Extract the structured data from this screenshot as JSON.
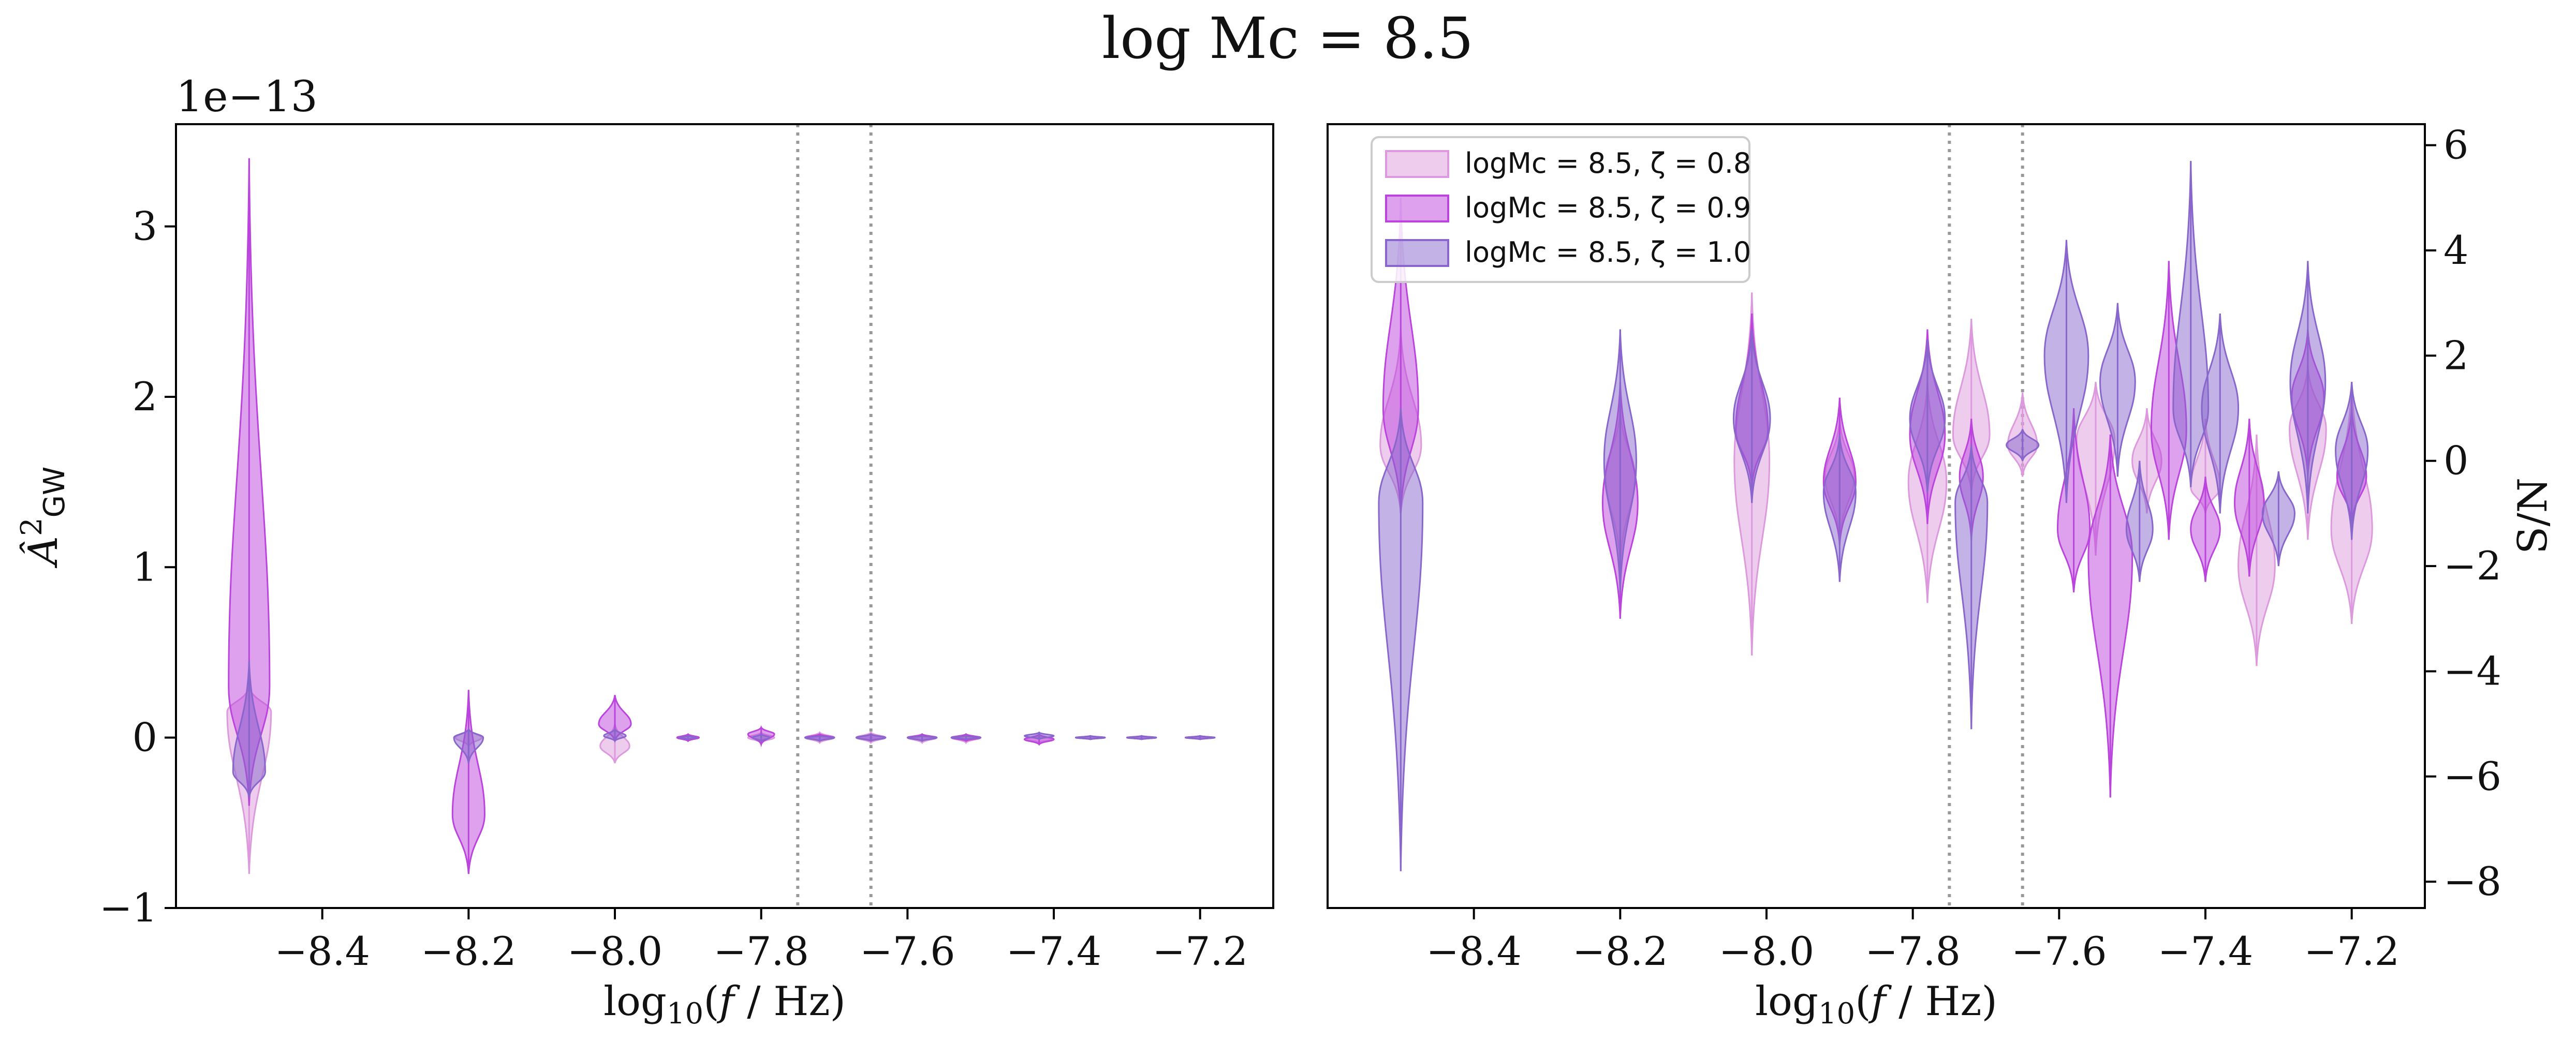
{
  "figure_title": "log Mc = 8.5",
  "chart_data": [
    {
      "type": "violin",
      "panel": "left",
      "xlabel": "log10(f / Hz)",
      "ylabel": "Â²GW",
      "y_offset_label": "1e−13",
      "xlim": [
        -8.6,
        -7.1
      ],
      "ylim": [
        -1.0,
        3.6
      ],
      "xticks": [
        "−8.4",
        "−8.2",
        "−8.0",
        "−7.8",
        "−7.6",
        "−7.4",
        "−7.2"
      ],
      "xtick_values": [
        -8.4,
        -8.2,
        -8.0,
        -7.8,
        -7.6,
        -7.4,
        -7.2
      ],
      "yticks": [
        "−1",
        "0",
        "1",
        "2",
        "3"
      ],
      "ytick_values": [
        -1,
        0,
        1,
        2,
        3
      ],
      "vlines": [
        -7.75,
        -7.65
      ],
      "series": [
        {
          "name": "logMc = 8.5, ζ = 0.8",
          "color": "#dd99dd",
          "points": [
            {
              "x": -8.5,
              "min": -0.8,
              "max": 0.3,
              "center": 0.15,
              "spread": 0.03
            },
            {
              "x": -8.2,
              "min": -0.05,
              "max": 0.05,
              "center": 0.0,
              "spread": 0.018
            },
            {
              "x": -8.0,
              "min": -0.15,
              "max": 0.08,
              "center": -0.05,
              "spread": 0.02
            },
            {
              "x": -7.9,
              "min": -0.02,
              "max": 0.02,
              "center": 0.0,
              "spread": 0.015
            },
            {
              "x": -7.8,
              "min": -0.03,
              "max": 0.03,
              "center": 0.0,
              "spread": 0.018
            },
            {
              "x": -7.72,
              "min": -0.03,
              "max": 0.03,
              "center": 0.0,
              "spread": 0.02
            },
            {
              "x": -7.65,
              "min": -0.03,
              "max": 0.03,
              "center": 0.0,
              "spread": 0.02
            },
            {
              "x": -7.58,
              "min": -0.03,
              "max": 0.02,
              "center": 0.0,
              "spread": 0.02
            },
            {
              "x": -7.52,
              "min": -0.03,
              "max": 0.02,
              "center": 0.0,
              "spread": 0.02
            },
            {
              "x": -7.42,
              "min": -0.03,
              "max": 0.01,
              "center": -0.01,
              "spread": 0.02
            },
            {
              "x": -7.35,
              "min": -0.01,
              "max": 0.01,
              "center": 0.0,
              "spread": 0.02
            },
            {
              "x": -7.28,
              "min": -0.01,
              "max": 0.01,
              "center": 0.0,
              "spread": 0.02
            },
            {
              "x": -7.2,
              "min": -0.01,
              "max": 0.01,
              "center": 0.0,
              "spread": 0.02
            }
          ]
        },
        {
          "name": "logMc = 8.5, ζ = 0.9",
          "color": "#bb44dd",
          "points": [
            {
              "x": -8.5,
              "min": -0.4,
              "max": 3.4,
              "center": 0.3,
              "spread": 0.028
            },
            {
              "x": -8.2,
              "min": -0.8,
              "max": 0.28,
              "center": -0.45,
              "spread": 0.022
            },
            {
              "x": -8.0,
              "min": -0.02,
              "max": 0.25,
              "center": 0.08,
              "spread": 0.022
            },
            {
              "x": -7.9,
              "min": -0.02,
              "max": 0.02,
              "center": 0.0,
              "spread": 0.015
            },
            {
              "x": -7.8,
              "min": -0.04,
              "max": 0.06,
              "center": 0.02,
              "spread": 0.018
            },
            {
              "x": -7.72,
              "min": -0.02,
              "max": 0.02,
              "center": 0.0,
              "spread": 0.02
            },
            {
              "x": -7.65,
              "min": -0.02,
              "max": 0.02,
              "center": 0.0,
              "spread": 0.02
            },
            {
              "x": -7.58,
              "min": -0.02,
              "max": 0.02,
              "center": 0.0,
              "spread": 0.02
            },
            {
              "x": -7.52,
              "min": -0.02,
              "max": 0.02,
              "center": 0.0,
              "spread": 0.02
            },
            {
              "x": -7.42,
              "min": -0.04,
              "max": 0.02,
              "center": -0.01,
              "spread": 0.02
            },
            {
              "x": -7.35,
              "min": -0.01,
              "max": 0.01,
              "center": 0.0,
              "spread": 0.02
            },
            {
              "x": -7.28,
              "min": -0.01,
              "max": 0.01,
              "center": 0.0,
              "spread": 0.02
            },
            {
              "x": -7.2,
              "min": -0.01,
              "max": 0.01,
              "center": 0.0,
              "spread": 0.02
            }
          ]
        },
        {
          "name": "logMc = 8.5, ζ = 1.0",
          "color": "#8866cc",
          "points": [
            {
              "x": -8.5,
              "min": -0.35,
              "max": 0.45,
              "center": -0.2,
              "spread": 0.022
            },
            {
              "x": -8.2,
              "min": -0.15,
              "max": 0.05,
              "center": 0.0,
              "spread": 0.02
            },
            {
              "x": -8.0,
              "min": -0.02,
              "max": 0.05,
              "center": 0.01,
              "spread": 0.015
            },
            {
              "x": -7.9,
              "min": -0.01,
              "max": 0.01,
              "center": 0.0,
              "spread": 0.012
            },
            {
              "x": -7.8,
              "min": -0.02,
              "max": 0.02,
              "center": 0.0,
              "spread": 0.012
            },
            {
              "x": -7.72,
              "min": -0.02,
              "max": 0.01,
              "center": 0.0,
              "spread": 0.02
            },
            {
              "x": -7.65,
              "min": -0.02,
              "max": 0.02,
              "center": 0.0,
              "spread": 0.02
            },
            {
              "x": -7.58,
              "min": -0.02,
              "max": 0.01,
              "center": 0.0,
              "spread": 0.02
            },
            {
              "x": -7.52,
              "min": -0.01,
              "max": 0.01,
              "center": 0.0,
              "spread": 0.02
            },
            {
              "x": -7.42,
              "min": -0.01,
              "max": 0.03,
              "center": 0.01,
              "spread": 0.02
            },
            {
              "x": -7.35,
              "min": -0.01,
              "max": 0.01,
              "center": 0.0,
              "spread": 0.02
            },
            {
              "x": -7.28,
              "min": -0.01,
              "max": 0.01,
              "center": 0.0,
              "spread": 0.02
            },
            {
              "x": -7.2,
              "min": -0.01,
              "max": 0.01,
              "center": 0.0,
              "spread": 0.02
            }
          ]
        }
      ]
    },
    {
      "type": "violin",
      "panel": "right",
      "xlabel": "log10(f / Hz)",
      "ylabel": "S/N",
      "xlim": [
        -8.6,
        -7.1
      ],
      "ylim": [
        -8.5,
        6.4
      ],
      "xticks": [
        "−8.4",
        "−8.2",
        "−8.0",
        "−7.8",
        "−7.6",
        "−7.4",
        "−7.2"
      ],
      "xtick_values": [
        -8.4,
        -8.2,
        -8.0,
        -7.8,
        -7.6,
        -7.4,
        -7.2
      ],
      "yticks": [
        "−8",
        "−6",
        "−4",
        "−2",
        "0",
        "2",
        "4",
        "6"
      ],
      "ytick_values": [
        -8,
        -6,
        -4,
        -2,
        0,
        2,
        4,
        6
      ],
      "vlines": [
        -7.75,
        -7.65
      ],
      "legend_position": "upper-left",
      "series": [
        {
          "name": "logMc = 8.5, ζ = 0.8",
          "color": "#dd99dd",
          "points": [
            {
              "x": -8.5,
              "min": -1.0,
              "max": 2.5,
              "center": 0.3,
              "spread": 0.028
            },
            {
              "x": -8.2,
              "min": -2.0,
              "max": 1.0,
              "center": -0.3,
              "spread": 0.02
            },
            {
              "x": -8.02,
              "min": -3.7,
              "max": 3.2,
              "center": 0.0,
              "spread": 0.024
            },
            {
              "x": -7.9,
              "min": -1.5,
              "max": 0.8,
              "center": -0.3,
              "spread": 0.02
            },
            {
              "x": -7.78,
              "min": -2.7,
              "max": 1.5,
              "center": -0.4,
              "spread": 0.026
            },
            {
              "x": -7.72,
              "min": -0.6,
              "max": 2.7,
              "center": 0.5,
              "spread": 0.025
            },
            {
              "x": -7.65,
              "min": -0.3,
              "max": 1.3,
              "center": 0.3,
              "spread": 0.02
            },
            {
              "x": -7.55,
              "min": -1.8,
              "max": 1.5,
              "center": 0.4,
              "spread": 0.026
            },
            {
              "x": -7.48,
              "min": -1.0,
              "max": 1.0,
              "center": 0.0,
              "spread": 0.02
            },
            {
              "x": -7.4,
              "min": -1.0,
              "max": 0.8,
              "center": -0.5,
              "spread": 0.02
            },
            {
              "x": -7.33,
              "min": -3.9,
              "max": 0.5,
              "center": -2.0,
              "spread": 0.025
            },
            {
              "x": -7.26,
              "min": -1.5,
              "max": 1.8,
              "center": 0.6,
              "spread": 0.025
            },
            {
              "x": -7.2,
              "min": -3.1,
              "max": 1.5,
              "center": -1.3,
              "spread": 0.028
            }
          ]
        },
        {
          "name": "logMc = 8.5, ζ = 0.9",
          "color": "#bb44dd",
          "points": [
            {
              "x": -8.5,
              "min": -1.0,
              "max": 5.0,
              "center": 1.0,
              "spread": 0.024
            },
            {
              "x": -8.2,
              "min": -3.0,
              "max": 1.5,
              "center": -0.8,
              "spread": 0.024
            },
            {
              "x": -8.02,
              "min": -0.5,
              "max": 2.8,
              "center": 0.6,
              "spread": 0.022
            },
            {
              "x": -7.9,
              "min": -1.6,
              "max": 1.2,
              "center": -0.4,
              "spread": 0.022
            },
            {
              "x": -7.78,
              "min": -1.2,
              "max": 2.5,
              "center": 0.5,
              "spread": 0.024
            },
            {
              "x": -7.72,
              "min": -1.5,
              "max": 0.8,
              "center": -0.3,
              "spread": 0.016
            },
            {
              "x": -7.58,
              "min": -2.5,
              "max": 1.0,
              "center": -1.3,
              "spread": 0.022
            },
            {
              "x": -7.53,
              "min": -6.4,
              "max": 0.5,
              "center": -1.8,
              "spread": 0.03
            },
            {
              "x": -7.45,
              "min": -1.5,
              "max": 3.8,
              "center": 0.6,
              "spread": 0.024
            },
            {
              "x": -7.4,
              "min": -2.3,
              "max": -0.3,
              "center": -1.3,
              "spread": 0.02
            },
            {
              "x": -7.34,
              "min": -2.2,
              "max": 0.8,
              "center": -0.8,
              "spread": 0.02
            },
            {
              "x": -7.26,
              "min": -0.3,
              "max": 2.5,
              "center": 1.2,
              "spread": 0.022
            },
            {
              "x": -7.2,
              "min": -1.2,
              "max": 1.0,
              "center": -0.3,
              "spread": 0.02
            }
          ]
        },
        {
          "name": "logMc = 8.5, ζ = 1.0",
          "color": "#8866cc",
          "points": [
            {
              "x": -8.5,
              "min": -7.8,
              "max": 1.0,
              "center": -0.8,
              "spread": 0.03
            },
            {
              "x": -8.2,
              "min": -2.5,
              "max": 2.5,
              "center": 0.0,
              "spread": 0.022
            },
            {
              "x": -8.02,
              "min": -0.8,
              "max": 2.5,
              "center": 0.8,
              "spread": 0.025
            },
            {
              "x": -7.9,
              "min": -2.3,
              "max": 0.5,
              "center": -0.6,
              "spread": 0.022
            },
            {
              "x": -7.78,
              "min": -0.6,
              "max": 2.3,
              "center": 0.8,
              "spread": 0.024
            },
            {
              "x": -7.72,
              "min": -5.1,
              "max": 0.3,
              "center": -0.8,
              "spread": 0.022
            },
            {
              "x": -7.65,
              "min": 0.0,
              "max": 0.6,
              "center": 0.3,
              "spread": 0.022
            },
            {
              "x": -7.59,
              "min": -0.8,
              "max": 4.2,
              "center": 2.0,
              "spread": 0.03
            },
            {
              "x": -7.52,
              "min": -0.3,
              "max": 3.0,
              "center": 1.5,
              "spread": 0.024
            },
            {
              "x": -7.49,
              "min": -2.3,
              "max": 0.0,
              "center": -1.3,
              "spread": 0.018
            },
            {
              "x": -7.42,
              "min": -0.5,
              "max": 5.7,
              "center": 1.0,
              "spread": 0.024
            },
            {
              "x": -7.38,
              "min": -1.0,
              "max": 2.8,
              "center": 1.0,
              "spread": 0.025
            },
            {
              "x": -7.3,
              "min": -2.0,
              "max": -0.2,
              "center": -1.0,
              "spread": 0.022
            },
            {
              "x": -7.26,
              "min": -1.0,
              "max": 3.8,
              "center": 1.5,
              "spread": 0.024
            },
            {
              "x": -7.2,
              "min": -1.5,
              "max": 1.5,
              "center": 0.2,
              "spread": 0.022
            }
          ]
        }
      ]
    }
  ]
}
